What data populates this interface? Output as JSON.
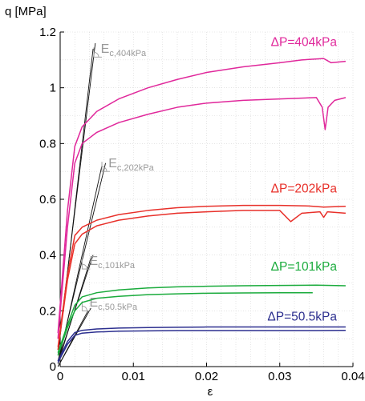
{
  "chart_data": {
    "type": "line",
    "xlabel": "ε",
    "ylabel": "q [MPa]",
    "xlim": [
      0,
      0.04
    ],
    "ylim": [
      0,
      1.2
    ],
    "xticks": [
      "0",
      "0.01",
      "0.02",
      "0.03",
      "0.04"
    ],
    "yticks": [
      "0",
      "0.2",
      "0.4",
      "0.6",
      "0.8",
      "1",
      "1.2"
    ],
    "grid": true,
    "series": [
      {
        "name": "ΔP=404kPa",
        "color": "#e0289b",
        "curves": [
          [
            [
              -0.0003,
              0.12
            ],
            [
              0.001,
              0.56
            ],
            [
              0.002,
              0.79
            ],
            [
              0.003,
              0.86
            ],
            [
              0.005,
              0.915
            ],
            [
              0.008,
              0.96
            ],
            [
              0.012,
              1.0
            ],
            [
              0.016,
              1.03
            ],
            [
              0.02,
              1.055
            ],
            [
              0.025,
              1.075
            ],
            [
              0.03,
              1.09
            ],
            [
              0.033,
              1.1
            ],
            [
              0.036,
              1.105
            ],
            [
              0.037,
              1.09
            ],
            [
              0.039,
              1.095
            ]
          ],
          [
            [
              -0.0003,
              0.1
            ],
            [
              0.001,
              0.5
            ],
            [
              0.002,
              0.73
            ],
            [
              0.003,
              0.8
            ],
            [
              0.005,
              0.84
            ],
            [
              0.008,
              0.875
            ],
            [
              0.012,
              0.905
            ],
            [
              0.016,
              0.93
            ],
            [
              0.02,
              0.945
            ],
            [
              0.025,
              0.955
            ],
            [
              0.03,
              0.96
            ],
            [
              0.035,
              0.965
            ],
            [
              0.0358,
              0.93
            ],
            [
              0.0362,
              0.85
            ],
            [
              0.0366,
              0.93
            ],
            [
              0.0375,
              0.955
            ],
            [
              0.039,
              0.965
            ]
          ]
        ]
      },
      {
        "name": "ΔP=202kPa",
        "color": "#e8302a",
        "curves": [
          [
            [
              -0.0003,
              0.07
            ],
            [
              0.001,
              0.33
            ],
            [
              0.002,
              0.47
            ],
            [
              0.003,
              0.5
            ],
            [
              0.005,
              0.525
            ],
            [
              0.008,
              0.545
            ],
            [
              0.012,
              0.56
            ],
            [
              0.016,
              0.57
            ],
            [
              0.02,
              0.575
            ],
            [
              0.025,
              0.578
            ],
            [
              0.03,
              0.578
            ],
            [
              0.034,
              0.576
            ],
            [
              0.036,
              0.572
            ],
            [
              0.039,
              0.575
            ]
          ],
          [
            [
              -0.0003,
              0.06
            ],
            [
              0.001,
              0.31
            ],
            [
              0.002,
              0.44
            ],
            [
              0.003,
              0.475
            ],
            [
              0.005,
              0.505
            ],
            [
              0.008,
              0.525
            ],
            [
              0.012,
              0.54
            ],
            [
              0.016,
              0.55
            ],
            [
              0.02,
              0.555
            ],
            [
              0.025,
              0.56
            ],
            [
              0.03,
              0.56
            ],
            [
              0.0315,
              0.52
            ],
            [
              0.033,
              0.55
            ],
            [
              0.0355,
              0.555
            ],
            [
              0.036,
              0.535
            ],
            [
              0.0365,
              0.555
            ],
            [
              0.039,
              0.55
            ]
          ]
        ]
      },
      {
        "name": "ΔP=101kPa",
        "color": "#1aab3c",
        "curves": [
          [
            [
              -0.0003,
              0.05
            ],
            [
              0.001,
              0.15
            ],
            [
              0.002,
              0.22
            ],
            [
              0.003,
              0.25
            ],
            [
              0.005,
              0.265
            ],
            [
              0.008,
              0.275
            ],
            [
              0.012,
              0.282
            ],
            [
              0.016,
              0.286
            ],
            [
              0.02,
              0.288
            ],
            [
              0.025,
              0.29
            ],
            [
              0.03,
              0.291
            ],
            [
              0.035,
              0.292
            ],
            [
              0.039,
              0.29
            ]
          ],
          [
            [
              -0.0003,
              0.04
            ],
            [
              0.001,
              0.14
            ],
            [
              0.002,
              0.2
            ],
            [
              0.003,
              0.23
            ],
            [
              0.005,
              0.245
            ],
            [
              0.008,
              0.252
            ],
            [
              0.012,
              0.258
            ],
            [
              0.016,
              0.261
            ],
            [
              0.02,
              0.263
            ],
            [
              0.025,
              0.264
            ],
            [
              0.03,
              0.265
            ],
            [
              0.0345,
              0.265
            ]
          ]
        ]
      },
      {
        "name": "ΔP=50.5kPa",
        "color": "#2c2f8f",
        "curves": [
          [
            [
              -0.0003,
              0.02
            ],
            [
              0.001,
              0.09
            ],
            [
              0.002,
              0.122
            ],
            [
              0.003,
              0.13
            ],
            [
              0.005,
              0.135
            ],
            [
              0.008,
              0.138
            ],
            [
              0.012,
              0.14
            ],
            [
              0.016,
              0.141
            ],
            [
              0.02,
              0.142
            ],
            [
              0.025,
              0.142
            ],
            [
              0.03,
              0.142
            ],
            [
              0.035,
              0.142
            ],
            [
              0.039,
              0.142
            ]
          ],
          [
            [
              -0.0003,
              0.015
            ],
            [
              0.001,
              0.08
            ],
            [
              0.002,
              0.112
            ],
            [
              0.003,
              0.12
            ],
            [
              0.005,
              0.124
            ],
            [
              0.008,
              0.127
            ],
            [
              0.012,
              0.128
            ],
            [
              0.016,
              0.129
            ],
            [
              0.02,
              0.129
            ],
            [
              0.025,
              0.129
            ],
            [
              0.03,
              0.129
            ],
            [
              0.035,
              0.129
            ],
            [
              0.039,
              0.13
            ]
          ]
        ]
      }
    ],
    "modulus_annotations": [
      {
        "main": "E",
        "sub": "c,404kPa",
        "lines": [
          [
            [
              -0.0003,
              0.06
            ],
            [
              0.0048,
              1.16
            ]
          ],
          [
            [
              -0.0003,
              0.04
            ],
            [
              0.0045,
              1.14
            ]
          ]
        ]
      },
      {
        "main": "E",
        "sub": "c,202kPa",
        "lines": [
          [
            [
              -0.0003,
              0.02
            ],
            [
              0.0062,
              0.73
            ]
          ],
          [
            [
              -0.0003,
              0.01
            ],
            [
              0.0057,
              0.72
            ]
          ]
        ]
      },
      {
        "main": "E",
        "sub": "c,101kPa",
        "lines": [
          [
            [
              -0.0003,
              0.02
            ],
            [
              0.0045,
              0.4
            ]
          ],
          [
            [
              -0.0003,
              0.01
            ],
            [
              0.0042,
              0.39
            ]
          ]
        ]
      },
      {
        "main": "E",
        "sub": "c,50.5kPa",
        "lines": [
          [
            [
              -0.0003,
              0.0
            ],
            [
              0.0042,
              0.21
            ]
          ],
          [
            [
              -0.0003,
              0.0
            ],
            [
              0.0038,
              0.2
            ]
          ]
        ]
      }
    ]
  }
}
